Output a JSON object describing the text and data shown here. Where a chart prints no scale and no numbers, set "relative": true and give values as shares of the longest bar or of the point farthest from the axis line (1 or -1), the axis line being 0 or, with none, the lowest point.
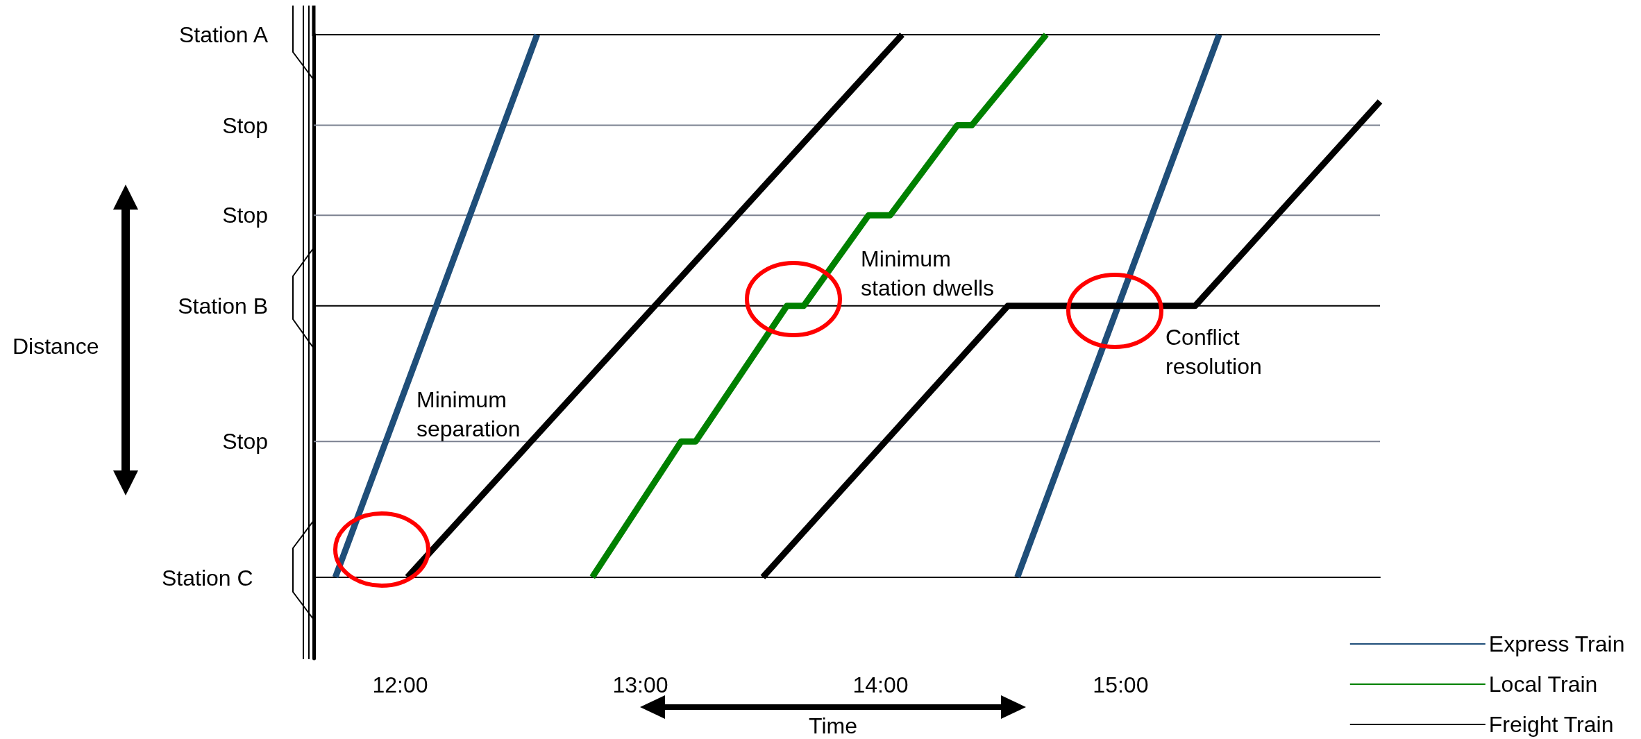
{
  "chart_data": {
    "type": "line",
    "xlabel": "Time",
    "relative": true,
    "xlim": [
      11.64,
      16.08
    ],
    "xticks": [
      {
        "value": 12,
        "label": "12:00"
      },
      {
        "value": 13,
        "label": "13:00"
      },
      {
        "value": 14,
        "label": "14:00"
      },
      {
        "value": 15,
        "label": "15:00"
      }
    ],
    "legend": "bottom right",
    "marker": "none",
    "line_style": "solid",
    "ref_lines": [
      {
        "axis": "y",
        "value": 1,
        "label": "Station A",
        "color": "#000000"
      },
      {
        "axis": "y",
        "value": 0.833,
        "label": "Stop",
        "color": "#7b8190"
      },
      {
        "axis": "y",
        "value": 0.667,
        "label": "Stop",
        "color": "#7b8190"
      },
      {
        "axis": "y",
        "value": 0.5,
        "label": "Station B",
        "color": "#000000"
      },
      {
        "axis": "y",
        "value": 0.25,
        "label": "Stop",
        "color": "#7b8190"
      }
    ],
    "series": [
      {
        "name": "Express Train",
        "color": "#1f4e79",
        "x": [
          11.73,
          12.57,
          null,
          14.57,
          15.41
        ],
        "values": [
          0,
          1,
          null,
          0,
          1
        ]
      },
      {
        "name": "Local Train",
        "color": "#008000",
        "x": [
          12.8,
          13.17,
          13.23,
          13.61,
          13.68,
          13.95,
          14.04,
          14.32,
          14.38,
          14.69
        ],
        "values": [
          0,
          0.25,
          0.25,
          0.5,
          0.5,
          0.667,
          0.667,
          0.833,
          0.833,
          1
        ]
      },
      {
        "name": "Freight Train",
        "color": "#000000",
        "x": [
          12.03,
          14.09,
          null,
          13.51,
          14.53,
          15.31,
          16.08
        ],
        "values": [
          0,
          1,
          null,
          0,
          0.5,
          0.5,
          0.877
        ]
      }
    ],
    "annotations": [
      "Minimum separation",
      "Minimum station dwells",
      "Conflict resolution",
      "Distance",
      "Station C"
    ]
  }
}
